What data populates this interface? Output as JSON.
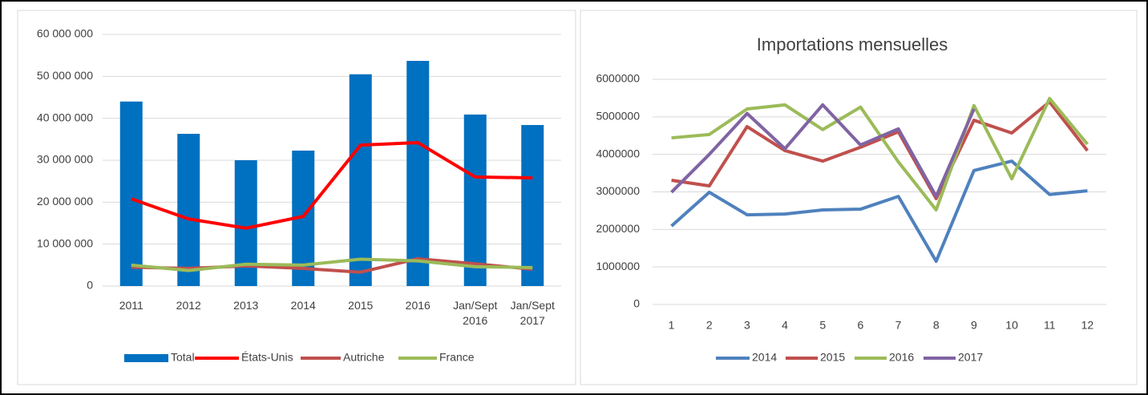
{
  "chart_data": [
    {
      "type": "bar",
      "categories": [
        "2011",
        "2012",
        "2013",
        "2014",
        "2015",
        "2016",
        "Jan/Sept 2016",
        "Jan/Sept 2017"
      ],
      "series": [
        {
          "name": "Total",
          "type": "bar",
          "color": "#0070c0",
          "values": [
            44000000,
            36300000,
            30000000,
            32300000,
            50500000,
            53700000,
            40900000,
            38400000
          ]
        },
        {
          "name": "États-Unis",
          "type": "line",
          "color": "#ff0000",
          "values": [
            20800000,
            16000000,
            13800000,
            16600000,
            33600000,
            34200000,
            26000000,
            25800000
          ]
        },
        {
          "name": "Autriche",
          "type": "line",
          "color": "#c0504d",
          "values": [
            4500000,
            4200000,
            4800000,
            4200000,
            3300000,
            6500000,
            5300000,
            4000000
          ]
        },
        {
          "name": "France",
          "type": "line",
          "color": "#9bbb59",
          "values": [
            5000000,
            3700000,
            5200000,
            5000000,
            6400000,
            6000000,
            4600000,
            4400000
          ]
        }
      ],
      "ylim": [
        0,
        60000000
      ],
      "yticks": [
        0,
        {
          "value": 10000000,
          "label": "10 000 000"
        },
        {
          "value": 20000000,
          "label": "20 000 000"
        },
        {
          "value": 30000000,
          "label": "30 000 000"
        },
        {
          "value": 40000000,
          "label": "40 000 000"
        },
        {
          "value": 50000000,
          "label": "50 000 000"
        },
        {
          "value": 60000000,
          "label": "60 000 000"
        }
      ],
      "grid": true,
      "legend": "bottom"
    },
    {
      "type": "line",
      "title": "Importations mensuelles",
      "categories": [
        1,
        2,
        3,
        4,
        5,
        6,
        7,
        8,
        9,
        10,
        11,
        12
      ],
      "series": [
        {
          "name": "2014",
          "color": "#4f81bd",
          "values": [
            2090000,
            2990000,
            2390000,
            2410000,
            2520000,
            2540000,
            2880000,
            1150000,
            3570000,
            3820000,
            2930000,
            3030000
          ]
        },
        {
          "name": "2015",
          "color": "#c0504d",
          "values": [
            3310000,
            3160000,
            4740000,
            4100000,
            3820000,
            4190000,
            4600000,
            2820000,
            4910000,
            4570000,
            5400000,
            4100000
          ]
        },
        {
          "name": "2016",
          "color": "#9bbb59",
          "values": [
            4440000,
            4530000,
            5210000,
            5320000,
            4660000,
            5260000,
            3800000,
            2520000,
            5300000,
            3350000,
            5490000,
            4270000
          ]
        },
        {
          "name": "2017",
          "color": "#8064a2",
          "values": [
            2990000,
            4000000,
            5090000,
            4150000,
            5320000,
            4250000,
            4680000,
            2880000,
            5210000,
            null,
            null,
            null
          ]
        }
      ],
      "ylim": [
        0,
        6000000
      ],
      "yticks": [
        0,
        1000000,
        2000000,
        3000000,
        4000000,
        5000000,
        6000000
      ],
      "grid": true,
      "legend": "bottom"
    }
  ]
}
